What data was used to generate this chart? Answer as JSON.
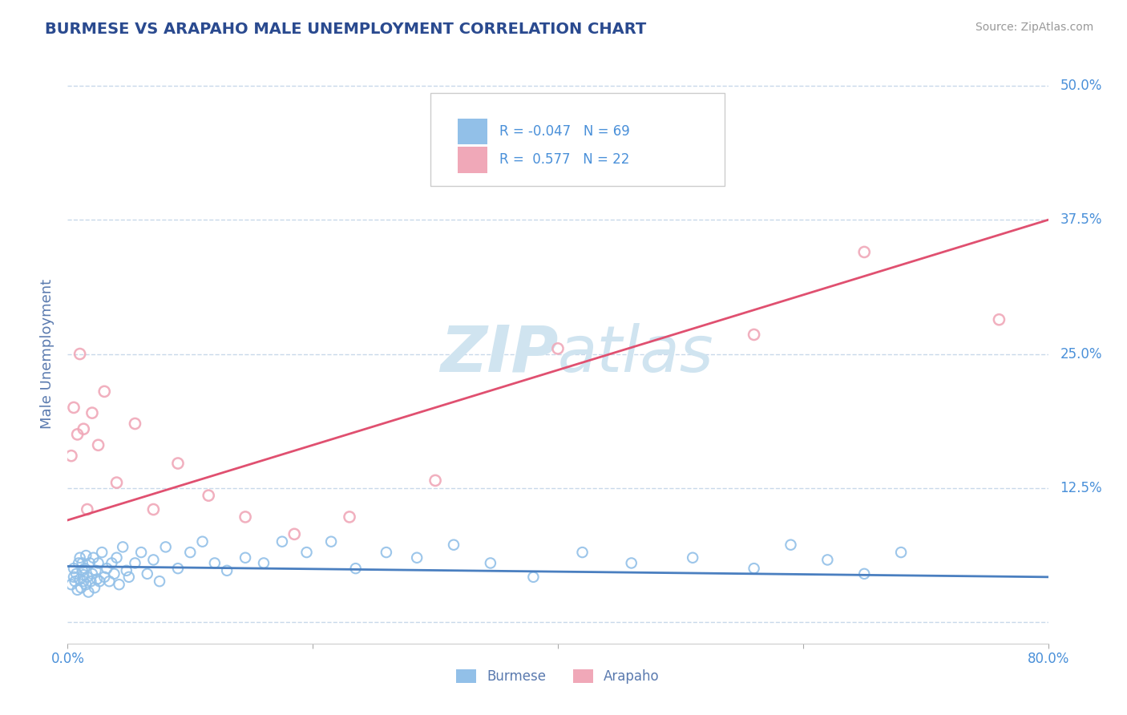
{
  "title": "BURMESE VS ARAPAHO MALE UNEMPLOYMENT CORRELATION CHART",
  "source_text": "Source: ZipAtlas.com",
  "ylabel": "Male Unemployment",
  "xlim": [
    0.0,
    0.8
  ],
  "ylim": [
    -0.02,
    0.52
  ],
  "ytick_vals": [
    0.0,
    0.125,
    0.25,
    0.375,
    0.5
  ],
  "ytick_labels": [
    "",
    "12.5%",
    "25.0%",
    "37.5%",
    "50.0%"
  ],
  "burmese_color": "#92c0e8",
  "arapaho_color": "#f0a8b8",
  "burmese_line_color": "#4a7fc0",
  "arapaho_line_color": "#e05070",
  "legend_burmese_label": "Burmese",
  "legend_arapaho_label": "Arapaho",
  "R_burmese": -0.047,
  "N_burmese": 69,
  "R_arapaho": 0.577,
  "N_arapaho": 22,
  "background_color": "#ffffff",
  "grid_color": "#c8d8ea",
  "title_color": "#2a4a8f",
  "axis_label_color": "#5a7aaf",
  "tick_color": "#4a90d9",
  "watermark_color": "#d0e4f0",
  "legend_text_dark": "#333333",
  "arapaho_line_start_y": 0.095,
  "arapaho_line_end_y": 0.375,
  "burmese_line_start_y": 0.052,
  "burmese_line_end_y": 0.042,
  "burmese_x": [
    0.003,
    0.005,
    0.005,
    0.006,
    0.007,
    0.008,
    0.009,
    0.01,
    0.01,
    0.011,
    0.012,
    0.012,
    0.013,
    0.013,
    0.014,
    0.015,
    0.015,
    0.016,
    0.017,
    0.018,
    0.019,
    0.02,
    0.021,
    0.022,
    0.023,
    0.024,
    0.025,
    0.026,
    0.028,
    0.03,
    0.032,
    0.034,
    0.036,
    0.038,
    0.04,
    0.042,
    0.045,
    0.048,
    0.05,
    0.055,
    0.06,
    0.065,
    0.07,
    0.075,
    0.08,
    0.09,
    0.1,
    0.11,
    0.12,
    0.13,
    0.145,
    0.16,
    0.175,
    0.195,
    0.215,
    0.235,
    0.26,
    0.285,
    0.315,
    0.345,
    0.38,
    0.42,
    0.46,
    0.51,
    0.56,
    0.59,
    0.62,
    0.65,
    0.68
  ],
  "burmese_y": [
    0.035,
    0.042,
    0.05,
    0.038,
    0.045,
    0.03,
    0.055,
    0.04,
    0.06,
    0.032,
    0.048,
    0.055,
    0.038,
    0.044,
    0.05,
    0.035,
    0.062,
    0.042,
    0.028,
    0.055,
    0.038,
    0.045,
    0.06,
    0.032,
    0.048,
    0.04,
    0.055,
    0.038,
    0.065,
    0.042,
    0.05,
    0.038,
    0.055,
    0.045,
    0.06,
    0.035,
    0.07,
    0.048,
    0.042,
    0.055,
    0.065,
    0.045,
    0.058,
    0.038,
    0.07,
    0.05,
    0.065,
    0.075,
    0.055,
    0.048,
    0.06,
    0.055,
    0.075,
    0.065,
    0.075,
    0.05,
    0.065,
    0.06,
    0.072,
    0.055,
    0.042,
    0.065,
    0.055,
    0.06,
    0.05,
    0.072,
    0.058,
    0.045,
    0.065
  ],
  "arapaho_x": [
    0.003,
    0.005,
    0.008,
    0.01,
    0.013,
    0.016,
    0.02,
    0.025,
    0.03,
    0.04,
    0.055,
    0.07,
    0.09,
    0.115,
    0.145,
    0.185,
    0.23,
    0.3,
    0.4,
    0.56,
    0.65,
    0.76
  ],
  "arapaho_y": [
    0.155,
    0.2,
    0.175,
    0.25,
    0.18,
    0.105,
    0.195,
    0.165,
    0.215,
    0.13,
    0.185,
    0.105,
    0.148,
    0.118,
    0.098,
    0.082,
    0.098,
    0.132,
    0.255,
    0.268,
    0.345,
    0.282
  ]
}
